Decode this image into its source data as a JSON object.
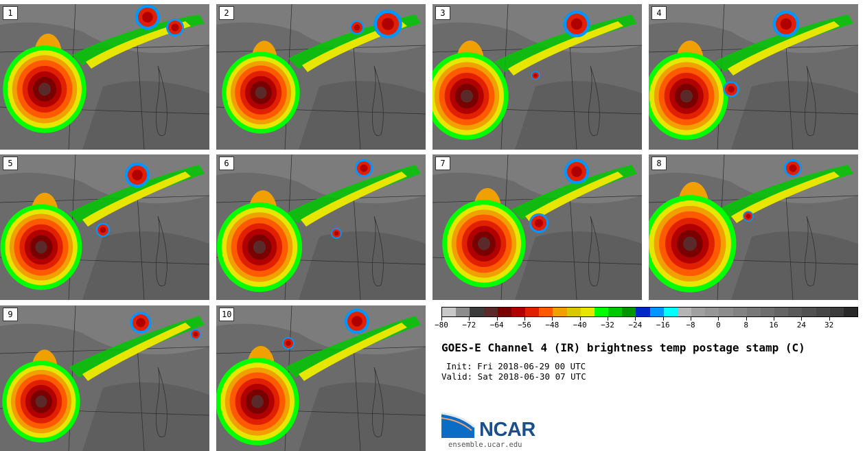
{
  "panels": [
    {
      "label": "1"
    },
    {
      "label": "2"
    },
    {
      "label": "3"
    },
    {
      "label": "4"
    },
    {
      "label": "5"
    },
    {
      "label": "6"
    },
    {
      "label": "7"
    },
    {
      "label": "8"
    },
    {
      "label": "9"
    },
    {
      "label": "10"
    }
  ],
  "colorbar": {
    "colors": [
      "#c8c8c8",
      "#8c8c8c",
      "#3c3c3c",
      "#5a2a2a",
      "#7a0000",
      "#b00000",
      "#e02000",
      "#ff5a00",
      "#f0a000",
      "#d8c800",
      "#e6e600",
      "#00ff00",
      "#00c800",
      "#009600",
      "#0028c8",
      "#0096ff",
      "#00ffff",
      "#b4b4b4",
      "#a0a0a0",
      "#969696",
      "#8c8c8c",
      "#828282",
      "#787878",
      "#6e6e6e",
      "#646464",
      "#5a5a5a",
      "#505050",
      "#464646",
      "#3c3c3c",
      "#282828"
    ],
    "ticks": [
      "−80",
      "−72",
      "−64",
      "−56",
      "−48",
      "−40",
      "−32",
      "−24",
      "−16",
      "−8",
      "0",
      "8",
      "16",
      "24",
      "32"
    ]
  },
  "title": "GOES-E Channel 4 (IR) brightness temp postage stamp (C)",
  "init_text": "Init: Fri 2018-06-29 00 UTC",
  "valid_text": "Valid: Sat 2018-06-30 07 UTC",
  "logo": {
    "name": "NCAR",
    "url": "ensemble.ucar.edu"
  }
}
